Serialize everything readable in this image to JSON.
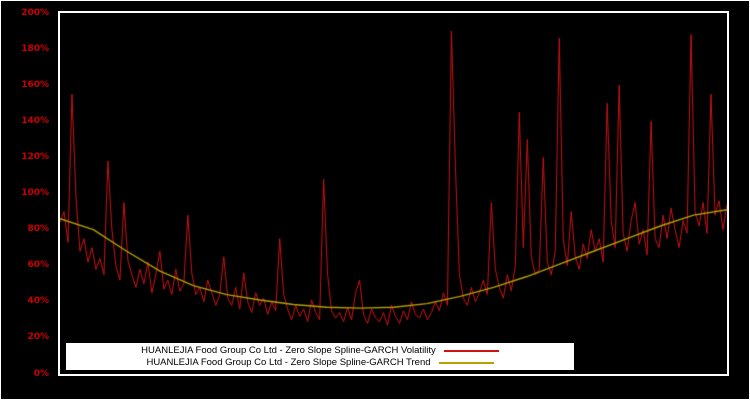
{
  "chart_data": {
    "type": "line",
    "title": "",
    "xlabel": "",
    "ylabel": "",
    "ylim": [
      0,
      200
    ],
    "y_ticks": [
      "0%",
      "20%",
      "40%",
      "60%",
      "80%",
      "100%",
      "120%",
      "140%",
      "160%",
      "180%",
      "200%"
    ],
    "background_color": "#000000",
    "frame_color": "#ffffff",
    "tick_label_color": "#cc0000",
    "legend_position": "bottom-center",
    "series": [
      {
        "name": "HUANLEJIA Food Group Co Ltd - Zero Slope Spline-GARCH Volatility",
        "color": "#cc1414",
        "values": [
          84,
          90,
          73,
          155,
          98,
          68,
          75,
          62,
          70,
          58,
          64,
          55,
          118,
          80,
          60,
          52,
          95,
          63,
          55,
          48,
          58,
          50,
          62,
          45,
          55,
          68,
          47,
          52,
          44,
          58,
          46,
          50,
          88,
          56,
          44,
          48,
          40,
          52,
          45,
          38,
          44,
          65,
          42,
          38,
          48,
          36,
          56,
          40,
          34,
          45,
          38,
          42,
          33,
          40,
          35,
          75,
          44,
          36,
          30,
          38,
          32,
          36,
          29,
          41,
          34,
          30,
          108,
          55,
          35,
          31,
          34,
          29,
          37,
          30,
          45,
          52,
          33,
          28,
          36,
          31,
          29,
          34,
          27,
          38,
          32,
          28,
          35,
          30,
          40,
          33,
          31,
          36,
          30,
          34,
          40,
          35,
          45,
          38,
          190,
          115,
          55,
          42,
          38,
          48,
          40,
          45,
          52,
          44,
          95,
          58,
          48,
          42,
          55,
          46,
          60,
          145,
          70,
          130,
          65,
          55,
          58,
          120,
          62,
          55,
          68,
          186,
          75,
          60,
          90,
          65,
          58,
          72,
          64,
          80,
          68,
          75,
          62,
          150,
          85,
          70,
          160,
          78,
          68,
          85,
          95,
          72,
          80,
          66,
          140,
          75,
          70,
          88,
          75,
          92,
          80,
          70,
          85,
          78,
          188,
          90,
          82,
          95,
          78,
          155,
          88,
          96,
          80,
          94
        ]
      },
      {
        "name": "HUANLEJIA Food Group Co Ltd - Zero Slope Spline-GARCH Trend",
        "color": "#b8a000",
        "x_fraction": [
          0,
          0.05,
          0.1,
          0.15,
          0.2,
          0.25,
          0.3,
          0.35,
          0.4,
          0.45,
          0.5,
          0.55,
          0.6,
          0.65,
          0.7,
          0.75,
          0.8,
          0.85,
          0.9,
          0.95,
          1.0
        ],
        "values": [
          86,
          80,
          68,
          57,
          49,
          44,
          41,
          38.5,
          37,
          36.5,
          37,
          39,
          43,
          48,
          54,
          61,
          68,
          75,
          82,
          88,
          91
        ]
      }
    ]
  }
}
